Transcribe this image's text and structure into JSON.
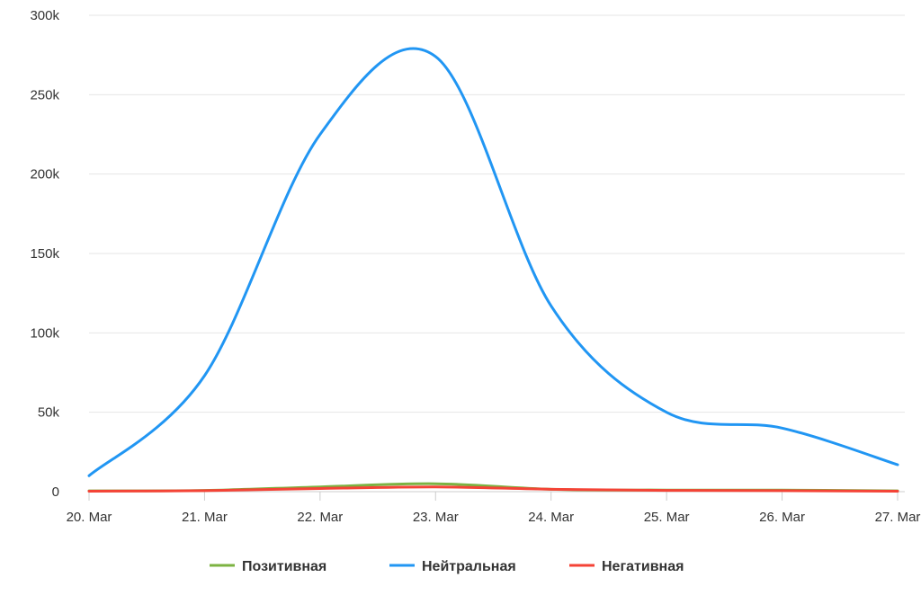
{
  "chart_data": {
    "type": "line",
    "title": "",
    "xlabel": "",
    "ylabel": "",
    "x": [
      "20. Mar",
      "21. Mar",
      "22. Mar",
      "23. Mar",
      "24. Mar",
      "25. Mar",
      "26. Mar",
      "27. Mar"
    ],
    "ylim": [
      0,
      300000
    ],
    "y_ticks": [
      0,
      50000,
      100000,
      150000,
      200000,
      250000,
      300000
    ],
    "y_tick_labels": [
      "0",
      "50k",
      "100k",
      "150k",
      "200k",
      "250k",
      "300k"
    ],
    "grid": true,
    "legend_position": "bottom-center",
    "series": [
      {
        "name": "Позитивная",
        "color": "#7cb342",
        "values": [
          500,
          800,
          3000,
          5000,
          1500,
          1000,
          1000,
          500
        ]
      },
      {
        "name": "Нейтральная",
        "color": "#2196f3",
        "values": [
          10000,
          73000,
          225000,
          274000,
          117000,
          50000,
          40000,
          17000
        ]
      },
      {
        "name": "Негативная",
        "color": "#f44336",
        "values": [
          300,
          600,
          2000,
          3000,
          1500,
          800,
          600,
          300
        ]
      }
    ]
  }
}
